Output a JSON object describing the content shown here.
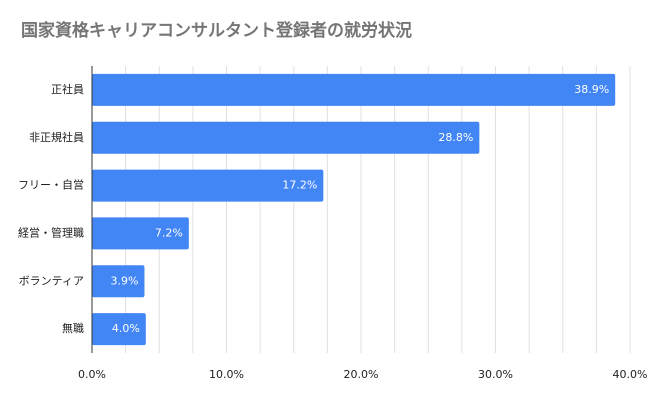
{
  "chart_data": {
    "type": "bar",
    "orientation": "horizontal",
    "title": "国家資格キャリアコンサルタント登録者の就労状況",
    "categories": [
      "正社員",
      "非正規社員",
      "フリー・自営",
      "経営・管理職",
      "ボランティア",
      "無職"
    ],
    "values": [
      38.9,
      28.8,
      17.2,
      7.2,
      3.9,
      4.0
    ],
    "data_labels": [
      "38.9%",
      "28.8%",
      "17.2%",
      "7.2%",
      "3.9%",
      "4.0%"
    ],
    "xlim": [
      0,
      40
    ],
    "x_ticks": [
      0,
      10,
      20,
      30,
      40
    ],
    "x_tick_labels": [
      "0.0%",
      "10.0%",
      "20.0%",
      "30.0%",
      "40.0%"
    ],
    "xlabel": "",
    "ylabel": "",
    "grid": true,
    "legend": "none",
    "bar_color": "#4285f4",
    "label_color": "#ffffff",
    "grid_color": "#e0e0e0"
  }
}
